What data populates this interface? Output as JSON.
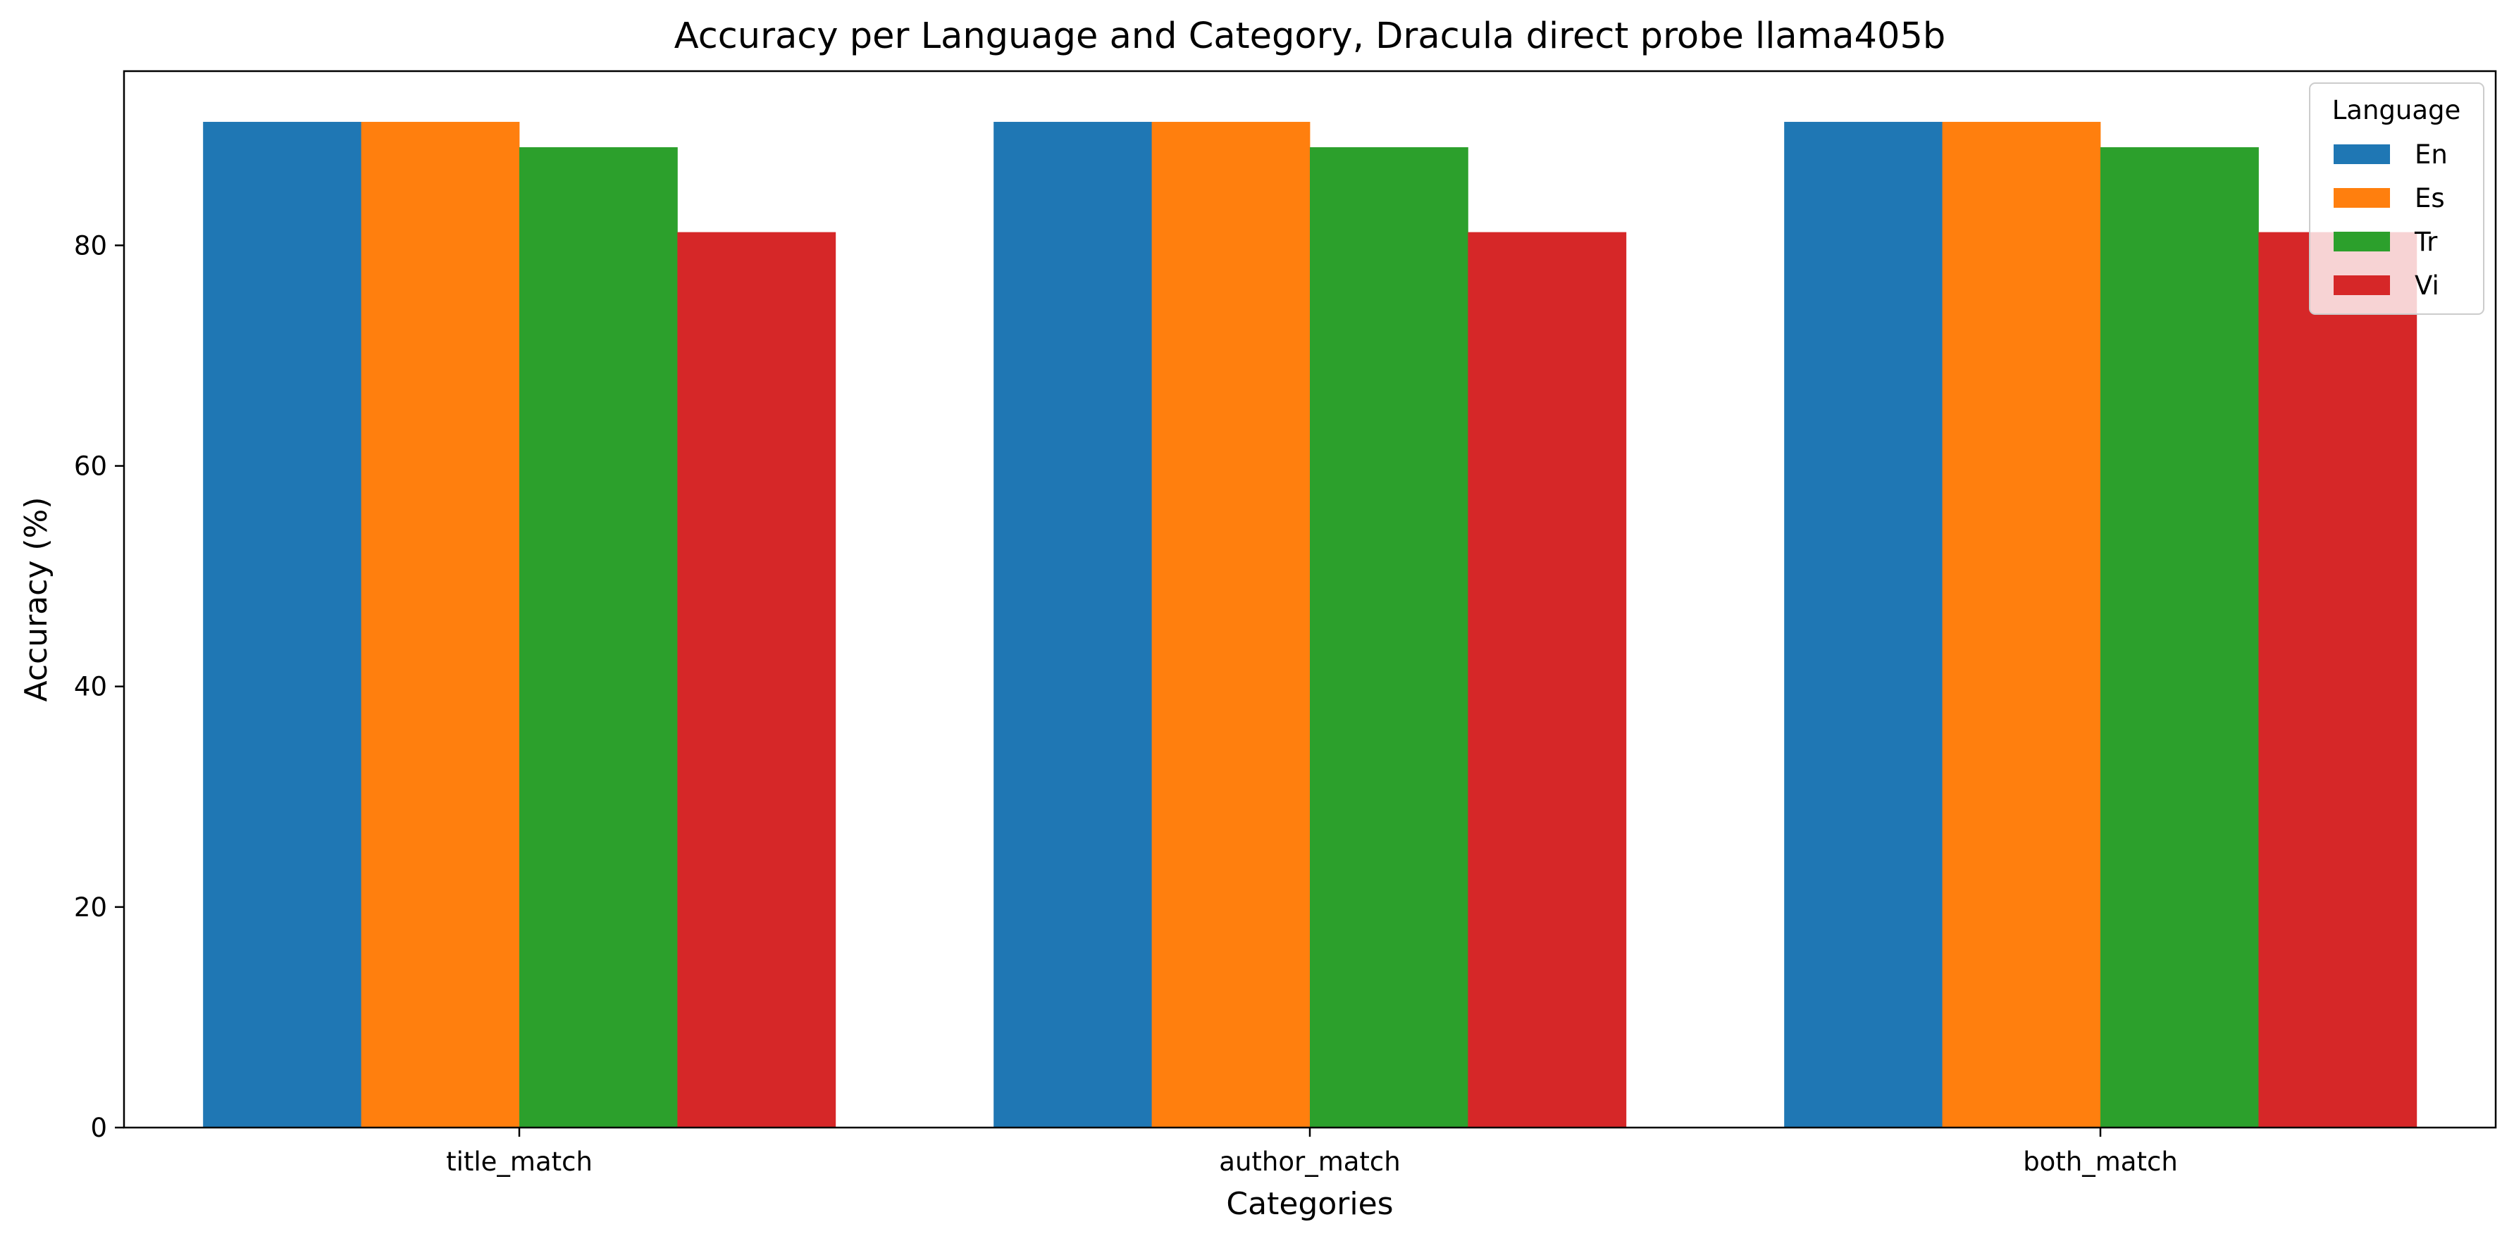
{
  "chart_data": {
    "type": "bar",
    "title": "Accuracy per Language and Category, Dracula direct probe llama405b",
    "xlabel": "Categories",
    "ylabel": "Accuracy (%)",
    "categories": [
      "title_match",
      "author_match",
      "both_match"
    ],
    "series": [
      {
        "name": "En",
        "color": "#1f77b4",
        "values": [
          91.2,
          91.2,
          91.2
        ]
      },
      {
        "name": "Es",
        "color": "#ff7f0e",
        "values": [
          91.2,
          91.2,
          91.2
        ]
      },
      {
        "name": "Tr",
        "color": "#2ca02c",
        "values": [
          88.9,
          88.9,
          88.9
        ]
      },
      {
        "name": "Vi",
        "color": "#d62728",
        "values": [
          81.2,
          81.2,
          81.2
        ]
      }
    ],
    "ylim": [
      0,
      95.8
    ],
    "yticks": [
      0,
      20,
      40,
      60,
      80
    ],
    "grid": false,
    "legend": {
      "title": "Language",
      "placement": "top-right"
    }
  }
}
